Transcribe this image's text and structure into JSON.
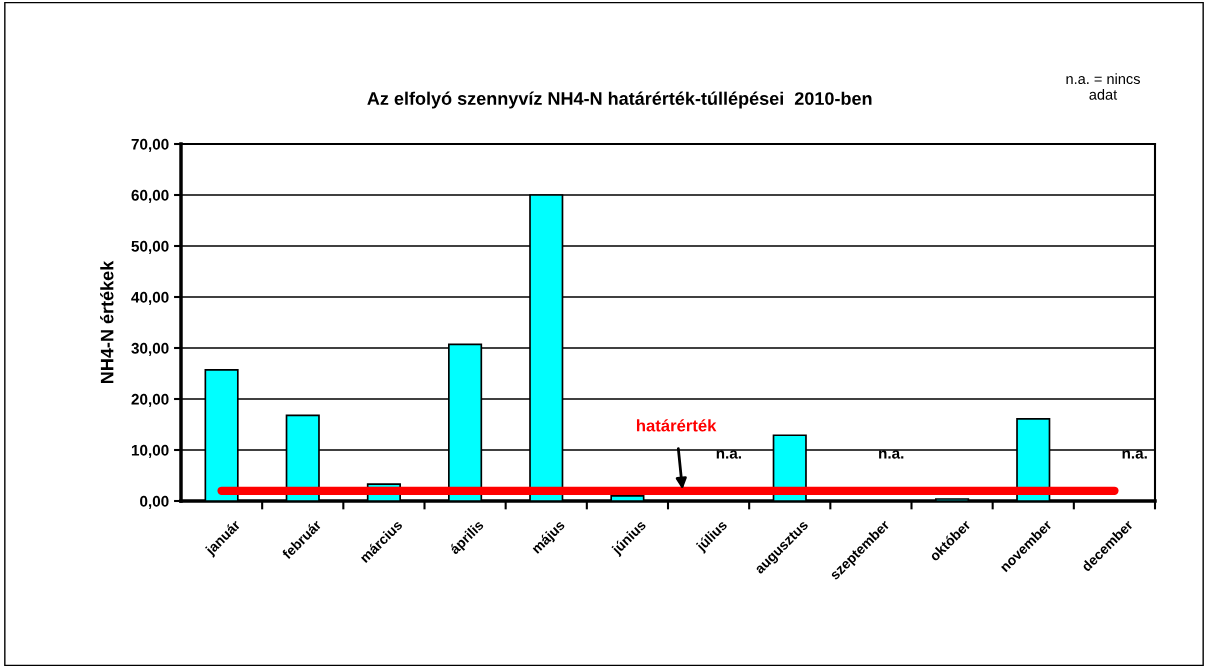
{
  "chart_data": {
    "type": "bar",
    "title": "Az elfolyó szennyvíz NH4-N határérték-túllépései  2010-ben",
    "ylabel": "NH4-N értékek",
    "categories": [
      "január",
      "február",
      "március",
      "április",
      "május",
      "június",
      "július",
      "augusztus",
      "szeptember",
      "október",
      "november",
      "december"
    ],
    "values": [
      25.7,
      16.8,
      3.3,
      30.7,
      60.0,
      1.0,
      null,
      12.9,
      null,
      0.4,
      16.1,
      null
    ],
    "color": "#00ffff",
    "ylim": [
      0,
      70
    ],
    "yticks": [
      {
        "value": 0,
        "label": "0,00"
      },
      {
        "value": 10,
        "label": "10,00"
      },
      {
        "value": 20,
        "label": "20,00"
      },
      {
        "value": 30,
        "label": "30,00"
      },
      {
        "value": 40,
        "label": "40,00"
      },
      {
        "value": 50,
        "label": "50,00"
      },
      {
        "value": 60,
        "label": "60,00"
      },
      {
        "value": 70,
        "label": "70,00"
      }
    ],
    "grid": "y",
    "ref_lines": [
      {
        "axis": "y",
        "value": 2.0,
        "label": "határérték",
        "color": "#ff0000"
      }
    ],
    "annotations": [
      "n.a. = nincs\nadat",
      "n.a.",
      "n.a.",
      "n.a."
    ]
  }
}
